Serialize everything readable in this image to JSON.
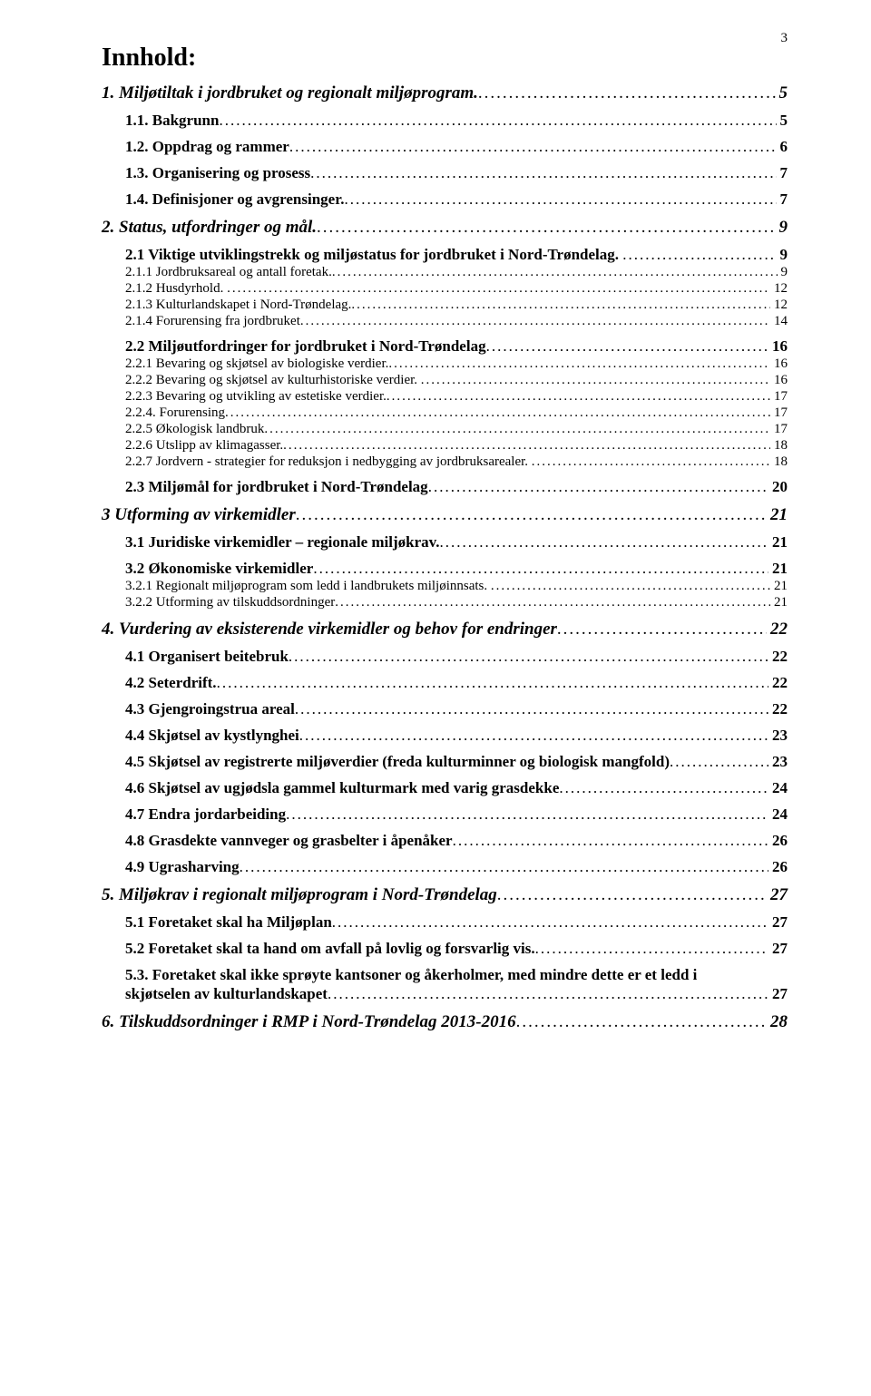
{
  "page_number": "3",
  "title": "Innhold:",
  "leader_char": ".",
  "colors": {
    "text": "#000000",
    "background": "#ffffff"
  },
  "fonts": {
    "family": "Times New Roman",
    "title_size_pt": 21,
    "level1_size_pt": 14,
    "level2_size_pt": 13,
    "level3_size_pt": 11
  },
  "entries": [
    {
      "level": 1,
      "text": "1. Miljøtiltak i jordbruket og regionalt miljøprogram.",
      "page": "5"
    },
    {
      "level": 2,
      "text": "1.1. Bakgrunn",
      "page": "5"
    },
    {
      "level": 2,
      "text": "1.2. Oppdrag og rammer",
      "page": "6"
    },
    {
      "level": 2,
      "text": "1.3. Organisering og prosess",
      "page": "7"
    },
    {
      "level": 2,
      "text": "1.4. Definisjoner og avgrensinger.",
      "page": "7"
    },
    {
      "level": 1,
      "text": "2. Status, utfordringer og mål.",
      "page": "9"
    },
    {
      "level": 2,
      "text": "2.1 Viktige utviklingstrekk og miljøstatus for jordbruket i Nord-Trøndelag. ",
      "page": "9"
    },
    {
      "level": 3,
      "text": "2.1.1 Jordbruksareal og antall foretak.",
      "page": "9"
    },
    {
      "level": 3,
      "text": "2.1.2 Husdyrhold. ",
      "page": "12"
    },
    {
      "level": 3,
      "text": "2.1.3 Kulturlandskapet i Nord-Trøndelag.",
      "page": "12"
    },
    {
      "level": 3,
      "text": "2.1.4 Forurensing fra jordbruket",
      "page": "14"
    },
    {
      "level": 2,
      "text": "2.2 Miljøutfordringer for jordbruket i Nord-Trøndelag",
      "page": "16"
    },
    {
      "level": 3,
      "text": "2.2.1 Bevaring og skjøtsel av biologiske verdier.",
      "page": "16"
    },
    {
      "level": 3,
      "text": "2.2.2 Bevaring og skjøtsel av kulturhistoriske verdier. ",
      "page": "16"
    },
    {
      "level": 3,
      "text": "2.2.3 Bevaring og utvikling av estetiske verdier.",
      "page": "17"
    },
    {
      "level": 3,
      "text": "2.2.4. Forurensing",
      "page": "17"
    },
    {
      "level": 3,
      "text": "2.2.5 Økologisk landbruk",
      "page": "17"
    },
    {
      "level": 3,
      "text": "2.2.6 Utslipp av klimagasser.",
      "page": "18"
    },
    {
      "level": 3,
      "text": "2.2.7 Jordvern - strategier for reduksjon i nedbygging av jordbruksarealer. ",
      "page": "18"
    },
    {
      "level": 2,
      "text": "2.3 Miljømål for jordbruket i Nord-Trøndelag",
      "page": "20"
    },
    {
      "level": 1,
      "text": "3 Utforming av virkemidler",
      "page": "21"
    },
    {
      "level": 2,
      "text": "3.1 Juridiske virkemidler – regionale miljøkrav.",
      "page": "21"
    },
    {
      "level": 2,
      "text": "3.2 Økonomiske virkemidler",
      "page": "21"
    },
    {
      "level": 3,
      "text": "3.2.1 Regionalt miljøprogram som ledd i landbrukets miljøinnsats. ",
      "page": "21"
    },
    {
      "level": 3,
      "text": "3.2.2 Utforming av tilskuddsordninger",
      "page": "21"
    },
    {
      "level": 1,
      "text": "4. Vurdering av eksisterende virkemidler og behov for endringer",
      "page": "22"
    },
    {
      "level": 2,
      "text": "4.1 Organisert beitebruk",
      "page": "22"
    },
    {
      "level": 2,
      "text": "4.2 Seterdrift.",
      "page": "22"
    },
    {
      "level": 2,
      "text": "4.3 Gjengroingstrua areal",
      "page": "22"
    },
    {
      "level": 2,
      "text": "4.4 Skjøtsel av kystlynghei",
      "page": "23"
    },
    {
      "level": 2,
      "text": "4.5 Skjøtsel av registrerte miljøverdier (freda kulturminner og biologisk mangfold)",
      "page": "23"
    },
    {
      "level": 2,
      "text": "4.6 Skjøtsel av ugjødsla gammel kulturmark med varig grasdekke",
      "page": "24"
    },
    {
      "level": 2,
      "text": "4.7 Endra jordarbeiding",
      "page": "24"
    },
    {
      "level": 2,
      "text": "4.8 Grasdekte vannveger og grasbelter i åpenåker",
      "page": "26"
    },
    {
      "level": 2,
      "text": "4.9 Ugrasharving",
      "page": "26"
    },
    {
      "level": 1,
      "text": "5. Miljøkrav i regionalt miljøprogram i Nord-Trøndelag",
      "page": "27"
    },
    {
      "level": 2,
      "text": "5.1 Foretaket skal ha Miljøplan",
      "page": "27"
    },
    {
      "level": 2,
      "text": "5.2 Foretaket skal ta hand om avfall på lovlig og forsvarlig vis.",
      "page": "27"
    },
    {
      "level": 2,
      "text": "5.3. Foretaket skal ikke sprøyte kantsoner og åkerholmer, med mindre dette er et ledd i skjøtselen av kulturlandskapet",
      "page": "27",
      "wrap": true
    },
    {
      "level": 1,
      "text": "6. Tilskuddsordninger i RMP i Nord-Trøndelag 2013-2016",
      "page": "28"
    }
  ]
}
